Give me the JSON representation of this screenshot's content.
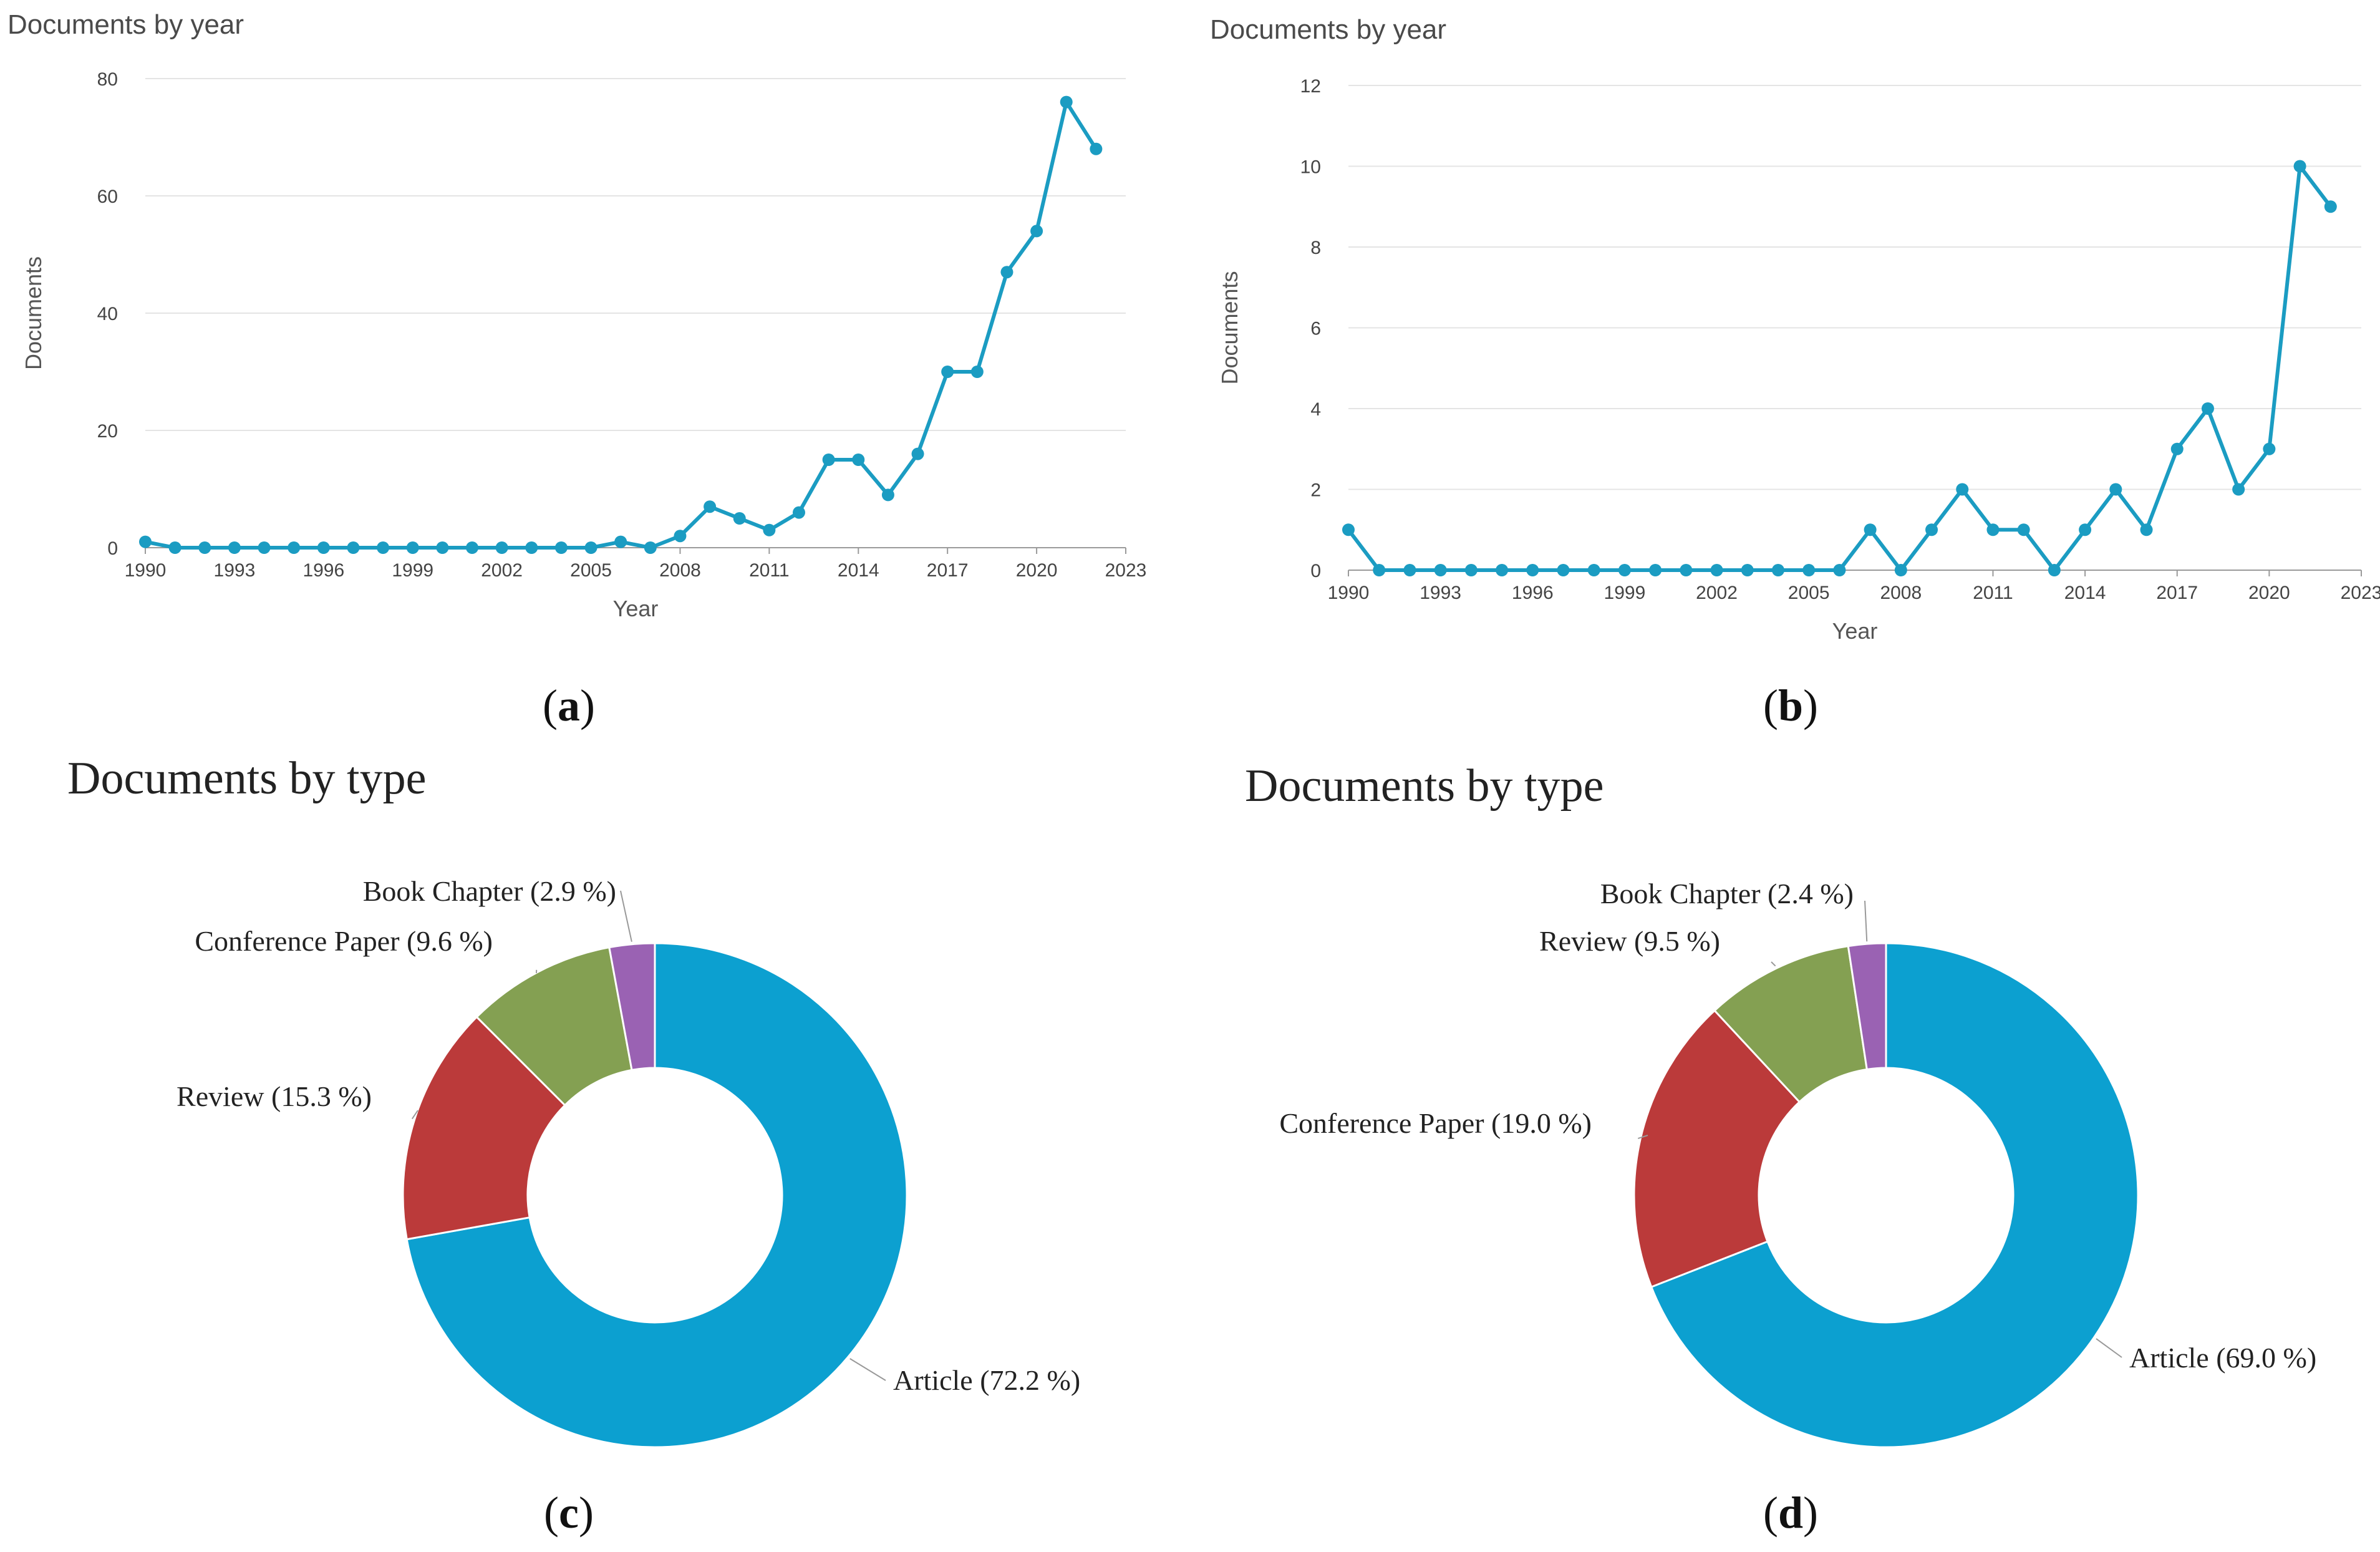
{
  "colors": {
    "line": "#1b9cc2",
    "grid": "#e4e4e4",
    "axis": "#9a9a9a",
    "pie": [
      "#0ca0d0",
      "#bb3a3a",
      "#84a052",
      "#9a62b3"
    ]
  },
  "captions": {
    "a": "a",
    "b": "b",
    "c": "c",
    "d": "d"
  },
  "chart_data": [
    {
      "id": "a",
      "type": "line",
      "title": "Documents by year",
      "xlabel": "Year",
      "ylabel": "Documents",
      "xlim": [
        1990,
        2023
      ],
      "ylim": [
        0,
        80
      ],
      "yticks": [
        0,
        20,
        40,
        60,
        80
      ],
      "xticks": [
        1990,
        1993,
        1996,
        1999,
        2002,
        2005,
        2008,
        2011,
        2014,
        2017,
        2020,
        2023
      ],
      "x": [
        1990,
        1991,
        1992,
        1993,
        1994,
        1995,
        1996,
        1997,
        1998,
        1999,
        2000,
        2001,
        2002,
        2003,
        2004,
        2005,
        2006,
        2007,
        2008,
        2009,
        2010,
        2011,
        2012,
        2013,
        2014,
        2015,
        2016,
        2017,
        2018,
        2019,
        2020,
        2021,
        2022
      ],
      "values": [
        1,
        0,
        0,
        0,
        0,
        0,
        0,
        0,
        0,
        0,
        0,
        0,
        0,
        0,
        0,
        0,
        1,
        0,
        2,
        7,
        5,
        3,
        6,
        15,
        15,
        9,
        16,
        30,
        30,
        47,
        54,
        76,
        68
      ]
    },
    {
      "id": "b",
      "type": "line",
      "title": "Documents by year",
      "xlabel": "Year",
      "ylabel": "Documents",
      "xlim": [
        1990,
        2023
      ],
      "ylim": [
        0,
        12
      ],
      "yticks": [
        0,
        2,
        4,
        6,
        8,
        10,
        12
      ],
      "xticks": [
        1990,
        1993,
        1996,
        1999,
        2002,
        2005,
        2008,
        2011,
        2014,
        2017,
        2020,
        2023
      ],
      "x": [
        1990,
        1991,
        1992,
        1993,
        1994,
        1995,
        1996,
        1997,
        1998,
        1999,
        2000,
        2001,
        2002,
        2003,
        2004,
        2005,
        2006,
        2007,
        2008,
        2009,
        2010,
        2011,
        2012,
        2013,
        2014,
        2015,
        2016,
        2017,
        2018,
        2019,
        2020,
        2021,
        2022
      ],
      "values": [
        1,
        0,
        0,
        0,
        0,
        0,
        0,
        0,
        0,
        0,
        0,
        0,
        0,
        0,
        0,
        0,
        0,
        1,
        0,
        1,
        2,
        1,
        1,
        0,
        1,
        2,
        1,
        3,
        4,
        2,
        3,
        10,
        9
      ]
    },
    {
      "id": "c",
      "type": "pie",
      "title": "Documents by type",
      "slices": [
        {
          "label": "Article",
          "value": 72.2,
          "text": "Article (72.2 %)"
        },
        {
          "label": "Review",
          "value": 15.3,
          "text": "Review (15.3 %)"
        },
        {
          "label": "Conference Paper",
          "value": 9.6,
          "text": "Conference Paper (9.6 %)"
        },
        {
          "label": "Book Chapter",
          "value": 2.9,
          "text": "Book Chapter (2.9 %)"
        }
      ]
    },
    {
      "id": "d",
      "type": "pie",
      "title": "Documents by type",
      "slices": [
        {
          "label": "Article",
          "value": 69.0,
          "text": "Article (69.0 %)"
        },
        {
          "label": "Conference Paper",
          "value": 19.0,
          "text": "Conference Paper (19.0 %)"
        },
        {
          "label": "Review",
          "value": 9.5,
          "text": "Review (9.5 %)"
        },
        {
          "label": "Book Chapter",
          "value": 2.4,
          "text": "Book Chapter (2.4 %)"
        }
      ]
    }
  ]
}
